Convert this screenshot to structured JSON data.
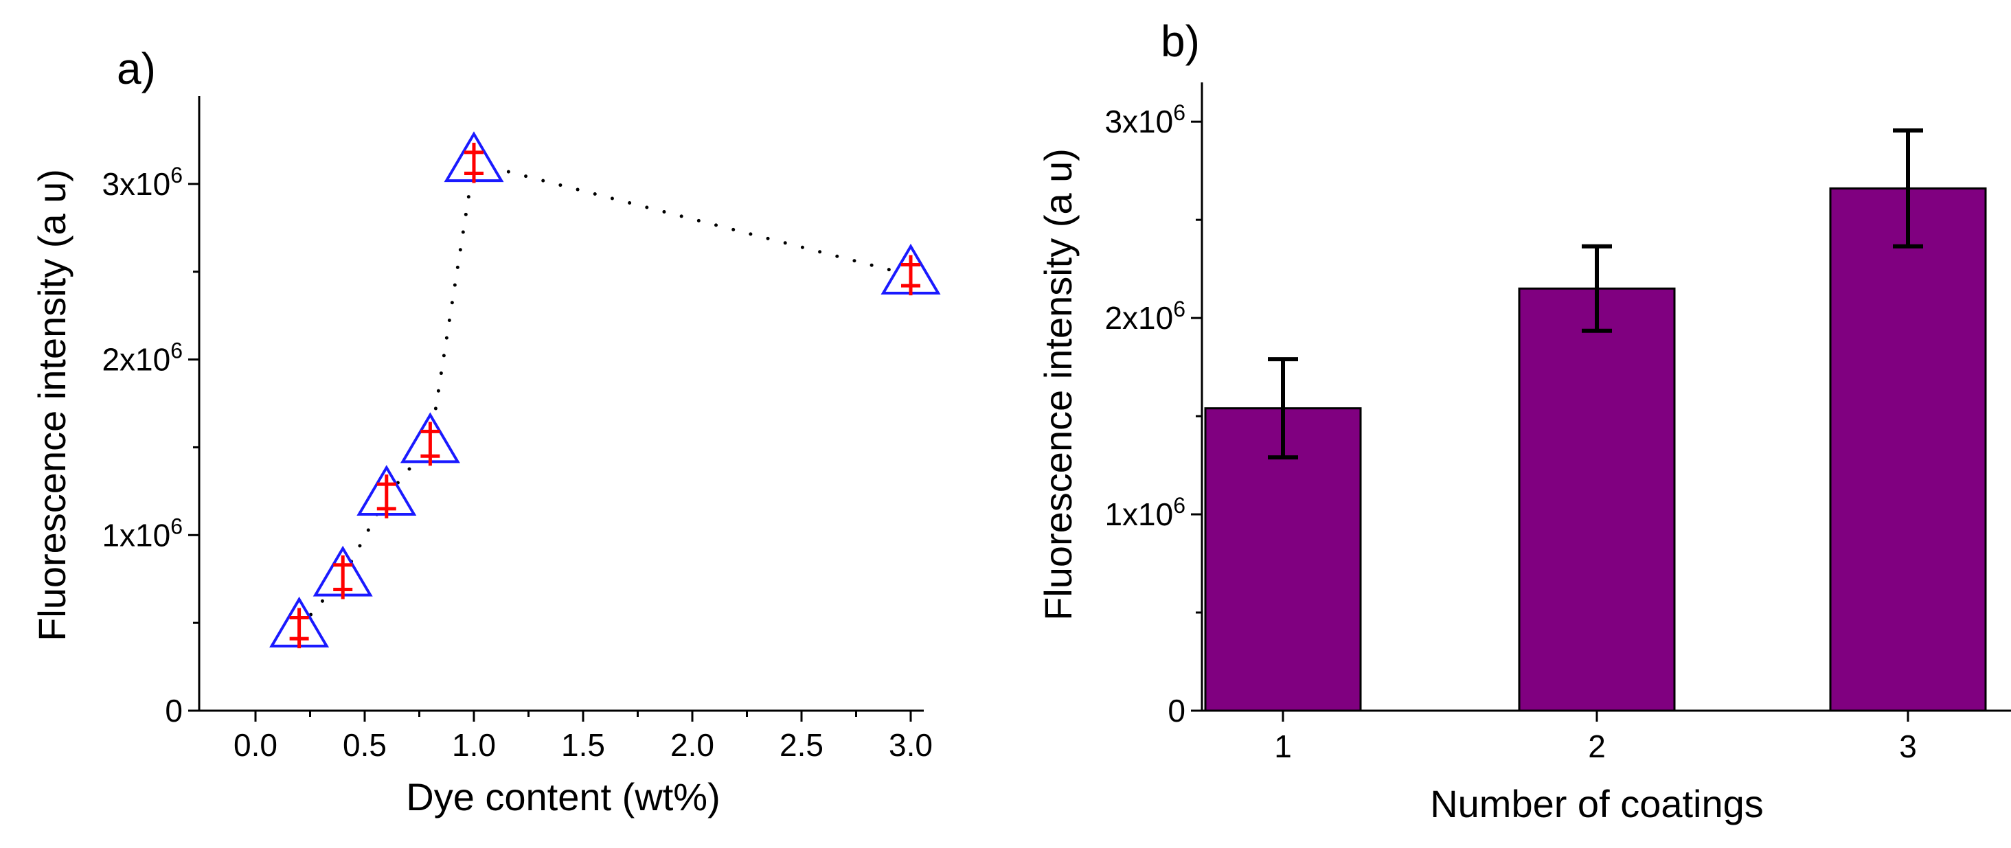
{
  "chart_data": [
    {
      "panel": "a)",
      "type": "scatter",
      "xlabel": "Dye content (wt%)",
      "ylabel": "Fluorescence intensity (a u)",
      "xlim": [
        -0.3,
        3.2
      ],
      "ylim": [
        0,
        3500000
      ],
      "xticks": [
        0.0,
        0.5,
        1.0,
        1.5,
        2.0,
        2.5,
        3.0
      ],
      "xtick_labels": [
        "0.0",
        "0.5",
        "1.0",
        "1.5",
        "2.0",
        "2.5",
        "3.0"
      ],
      "yticks": [
        {
          "value": 0,
          "base": "0",
          "exp": ""
        },
        {
          "value": 1000000,
          "base": "1x10",
          "exp": "6"
        },
        {
          "value": 2000000,
          "base": "2x10",
          "exp": "6"
        },
        {
          "value": 3000000,
          "base": "3x10",
          "exp": "6"
        }
      ],
      "grid": false,
      "connector": "dotted",
      "marker": "triangle",
      "marker_color": "#1a1aff",
      "errorbar_color": "#ff0000",
      "points": [
        {
          "x": 0.2,
          "y": 470000,
          "err": 60000
        },
        {
          "x": 0.4,
          "y": 760000,
          "err": 70000
        },
        {
          "x": 0.6,
          "y": 1220000,
          "err": 70000
        },
        {
          "x": 0.8,
          "y": 1520000,
          "err": 70000
        },
        {
          "x": 1.0,
          "y": 3120000,
          "err": 60000
        },
        {
          "x": 3.0,
          "y": 2480000,
          "err": 60000
        }
      ]
    },
    {
      "panel": "b)",
      "type": "bar",
      "xlabel": "Number of coatings",
      "ylabel": "Fluorescence intensity (a u)",
      "categories": [
        "1",
        "2",
        "3"
      ],
      "values": [
        1540000,
        2150000,
        2660000
      ],
      "errors": [
        250000,
        215000,
        295000
      ],
      "ylim": [
        0,
        3200000
      ],
      "yticks": [
        {
          "value": 0,
          "base": "0",
          "exp": ""
        },
        {
          "value": 1000000,
          "base": "1x10",
          "exp": "6"
        },
        {
          "value": 2000000,
          "base": "2x10",
          "exp": "6"
        },
        {
          "value": 3000000,
          "base": "3x10",
          "exp": "6"
        }
      ],
      "grid": false,
      "bar_color": "#800080"
    }
  ]
}
